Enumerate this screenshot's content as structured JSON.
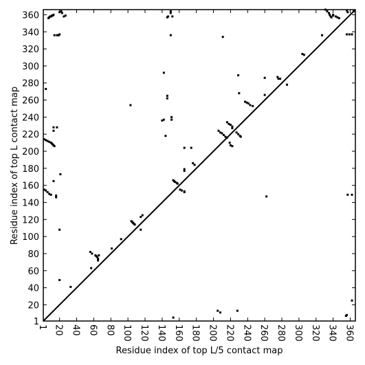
{
  "chart_data": {
    "type": "scatter",
    "x_label": "Residue index of top L/5 contact map",
    "y_label": "Residue index of top L contact map",
    "xlim": [
      1,
      366
    ],
    "ylim": [
      1,
      366
    ],
    "xticks": [
      1,
      20,
      40,
      60,
      80,
      100,
      120,
      140,
      160,
      180,
      200,
      220,
      240,
      260,
      280,
      300,
      320,
      340,
      360
    ],
    "yticks": [
      1,
      20,
      40,
      60,
      80,
      100,
      120,
      140,
      160,
      180,
      200,
      220,
      240,
      260,
      280,
      300,
      320,
      340,
      360
    ],
    "color": "#000000",
    "diagonal": true,
    "x": [
      7,
      8,
      9,
      10,
      11,
      12,
      13,
      20,
      22,
      23,
      25,
      27,
      14,
      17,
      19,
      20,
      4,
      2,
      4,
      6,
      8,
      10,
      11,
      12,
      13,
      14,
      13,
      13,
      17,
      2,
      4,
      6,
      8,
      10,
      16,
      16,
      21,
      13,
      20,
      20,
      33,
      56,
      58,
      62,
      63,
      64,
      65,
      65,
      66,
      57,
      81,
      92,
      104,
      105,
      106,
      107,
      108,
      103,
      115,
      117,
      115,
      142,
      140,
      142,
      144,
      146,
      147,
      150,
      150,
      152,
      150,
      146,
      146,
      151,
      151,
      153,
      154,
      155,
      157,
      158,
      161,
      163,
      166,
      166,
      166,
      174,
      166,
      166,
      176,
      178,
      153,
      211,
      206,
      208,
      210,
      212,
      214,
      216,
      216,
      218,
      220,
      222,
      222,
      219,
      220,
      222,
      227,
      229,
      231,
      232,
      230,
      229,
      237,
      239,
      241,
      243,
      246,
      260,
      260,
      262,
      205,
      208,
      228,
      275,
      276,
      278,
      286,
      304,
      306,
      327,
      331,
      333,
      335,
      336,
      337,
      338,
      340,
      340,
      343,
      345,
      347,
      356,
      359,
      362,
      356,
      357,
      364,
      357,
      362,
      362,
      356,
      355
    ],
    "y": [
      356,
      357,
      358,
      358,
      359,
      359,
      360,
      363,
      364,
      362,
      358,
      359,
      336,
      336,
      336,
      337,
      273,
      214,
      213,
      212,
      211,
      210,
      209,
      208,
      207,
      206,
      224,
      228,
      228,
      155,
      154,
      152,
      150,
      149,
      146,
      148,
      173,
      165,
      108,
      49,
      41,
      82,
      80,
      78,
      77,
      76,
      74,
      72,
      78,
      63,
      86,
      97,
      118,
      117,
      116,
      115,
      114,
      254,
      123,
      125,
      108,
      292,
      236,
      237,
      218,
      357,
      358,
      362,
      364,
      358,
      336,
      262,
      265,
      237,
      240,
      166,
      165,
      164,
      163,
      162,
      155,
      154,
      153,
      152,
      204,
      204,
      177,
      179,
      186,
      184,
      5,
      334,
      224,
      222,
      221,
      219,
      217,
      216,
      234,
      232,
      231,
      229,
      227,
      210,
      207,
      206,
      222,
      220,
      218,
      217,
      268,
      289,
      258,
      257,
      256,
      254,
      253,
      266,
      286,
      147,
      13,
      11,
      13,
      287,
      285,
      285,
      278,
      314,
      313,
      336,
      366,
      364,
      362,
      360,
      358,
      357,
      360,
      359,
      358,
      357,
      356,
      337,
      337,
      337,
      365,
      363,
      364,
      149,
      149,
      25,
      8,
      7
    ]
  }
}
